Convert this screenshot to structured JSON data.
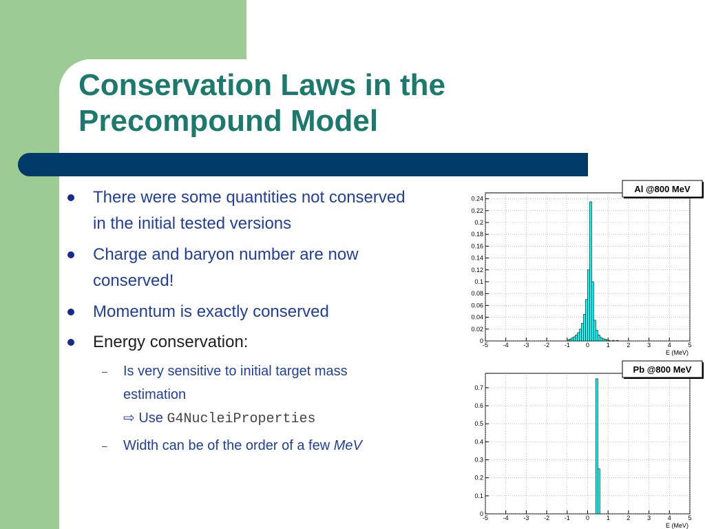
{
  "slide": {
    "title_line1": "Conservation Laws in the",
    "title_line2": "Precompound Model"
  },
  "bullets": [
    {
      "text_line1": "There were some quantities not conserved",
      "text_line2": "in the initial tested versions"
    },
    {
      "text_line1": "Charge and baryon number are now",
      "text_line2": "conserved!"
    },
    {
      "text": "Momentum is exactly conserved"
    },
    {
      "text": "Energy conservation:"
    }
  ],
  "sub_bullets": [
    {
      "text_line1": "Is very sensitive to initial target mass",
      "text_line2": "estimation",
      "arrow": "⇨",
      "use_label": "Use",
      "code": "G4NucleiProperties"
    },
    {
      "text_prefix": "Width can be of the order of a few",
      "text_italic": "MeV"
    }
  ],
  "colors": {
    "green": "#9ccc94",
    "title": "#1b7a6b",
    "bar": "#003a68",
    "text_blue": "#1f3fa0",
    "fill": "#00ffff"
  },
  "chart_data": [
    {
      "type": "bar",
      "title": "Al @800 MeV",
      "xlabel": "E (MeV)",
      "xlim": [
        -5,
        5
      ],
      "ylim": [
        0,
        0.25
      ],
      "x_ticks": [
        "-5",
        "-4",
        "-3",
        "-2",
        "-1",
        "0",
        "1",
        "2",
        "3",
        "4",
        "5"
      ],
      "y_ticks": [
        "0",
        "0.02",
        "0.04",
        "0.06",
        "0.08",
        "0.1",
        "0.12",
        "0.14",
        "0.16",
        "0.18",
        "0.2",
        "0.22",
        "0.24"
      ],
      "y_tick_values": [
        0,
        0.02,
        0.04,
        0.06,
        0.08,
        0.1,
        0.12,
        0.14,
        0.16,
        0.18,
        0.2,
        0.22,
        0.24
      ],
      "bins": [
        {
          "x": -1.0,
          "y": 0.002
        },
        {
          "x": -0.9,
          "y": 0.003
        },
        {
          "x": -0.8,
          "y": 0.005
        },
        {
          "x": -0.7,
          "y": 0.007
        },
        {
          "x": -0.6,
          "y": 0.01
        },
        {
          "x": -0.5,
          "y": 0.014
        },
        {
          "x": -0.4,
          "y": 0.02
        },
        {
          "x": -0.3,
          "y": 0.03
        },
        {
          "x": -0.2,
          "y": 0.045
        },
        {
          "x": -0.1,
          "y": 0.07
        },
        {
          "x": 0.0,
          "y": 0.12
        },
        {
          "x": 0.1,
          "y": 0.235
        },
        {
          "x": 0.2,
          "y": 0.1
        },
        {
          "x": 0.3,
          "y": 0.035
        },
        {
          "x": 0.4,
          "y": 0.018
        },
        {
          "x": 0.5,
          "y": 0.01
        },
        {
          "x": 0.6,
          "y": 0.006
        },
        {
          "x": 0.7,
          "y": 0.004
        },
        {
          "x": 0.8,
          "y": 0.003
        },
        {
          "x": 0.9,
          "y": 0.002
        },
        {
          "x": 1.0,
          "y": 0.001
        },
        {
          "x": 1.2,
          "y": 0.001
        },
        {
          "x": 1.4,
          "y": 0.001
        }
      ],
      "bin_width": 0.1,
      "grid": true
    },
    {
      "type": "bar",
      "title": "Pb @800 MeV",
      "xlabel": "E (MeV)",
      "xlim": [
        -5,
        5
      ],
      "ylim": [
        0,
        0.78
      ],
      "x_ticks": [
        "-5",
        "-4",
        "-3",
        "-2",
        "-1",
        "0",
        "1",
        "2",
        "3",
        "4",
        "5"
      ],
      "y_ticks": [
        "0",
        "0.1",
        "0.2",
        "0.3",
        "0.4",
        "0.5",
        "0.6",
        "0.7"
      ],
      "y_tick_values": [
        0,
        0.1,
        0.2,
        0.3,
        0.4,
        0.5,
        0.6,
        0.7
      ],
      "bins": [
        {
          "x": 0.4,
          "y": 0.75
        },
        {
          "x": 0.5,
          "y": 0.25
        }
      ],
      "bin_width": 0.1,
      "grid": true
    }
  ]
}
